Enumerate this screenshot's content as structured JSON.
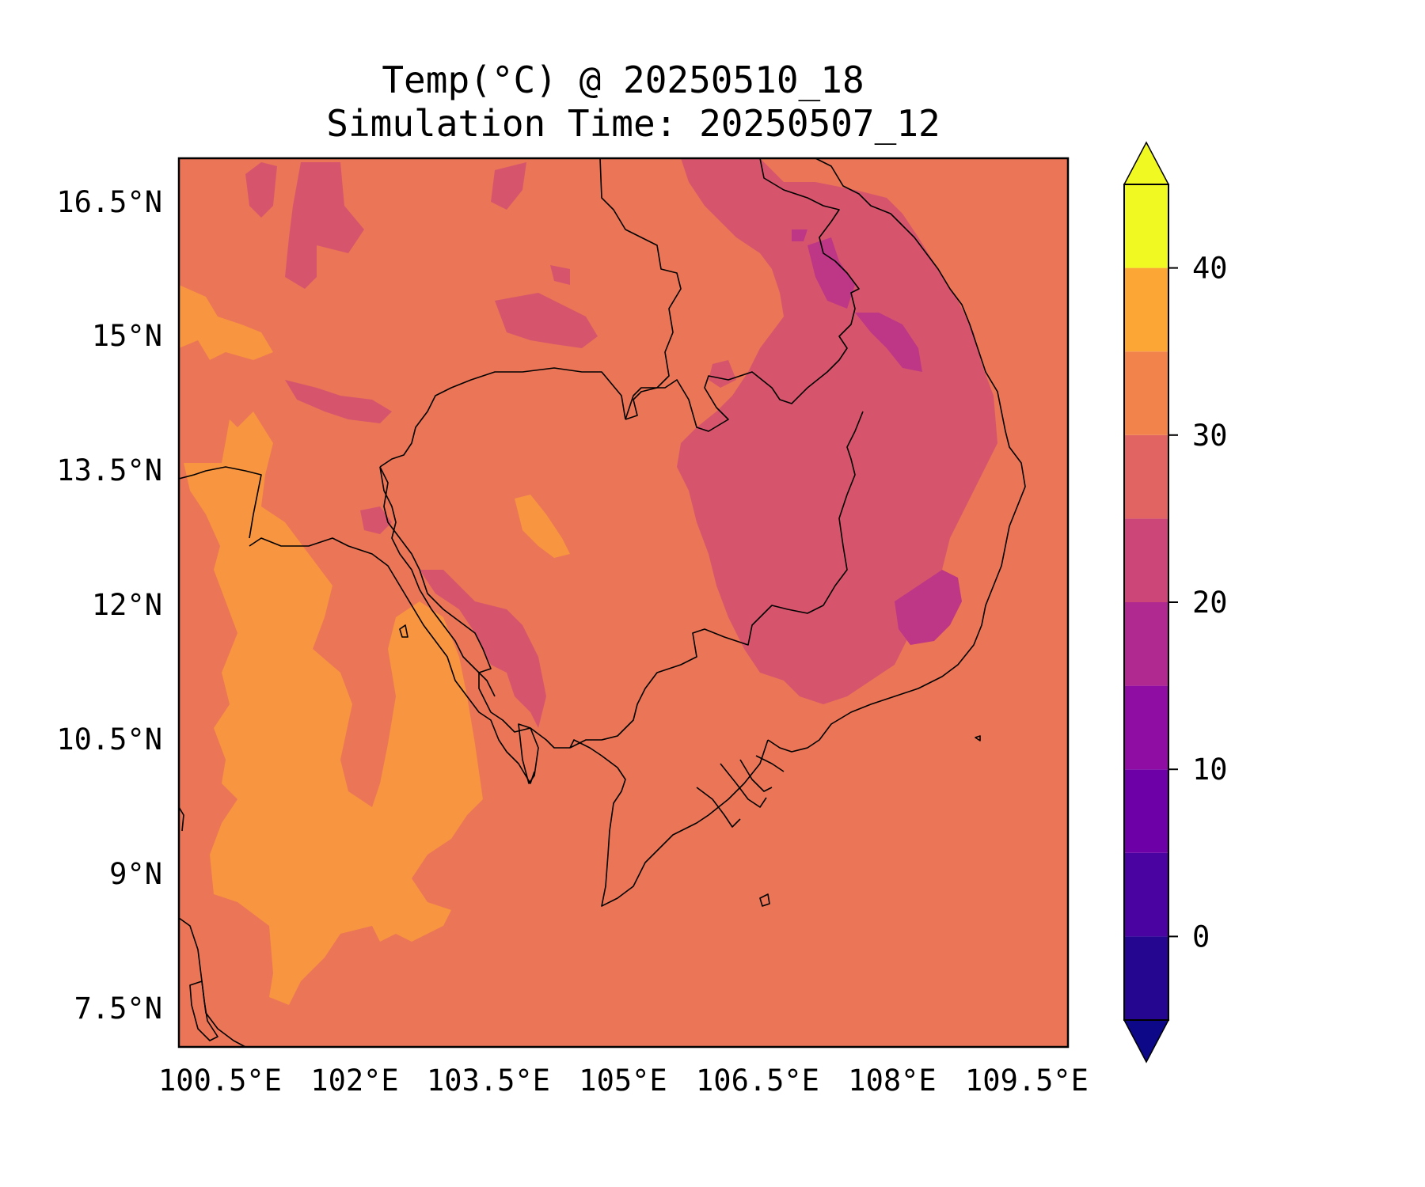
{
  "title": "Temp(°C) @ 20250510_18",
  "subtitle": "Simulation Time: 20250507_12",
  "map": {
    "x_ticks": [
      "100.5°E",
      "102°E",
      "103.5°E",
      "105°E",
      "106.5°E",
      "108°E",
      "109.5°E"
    ],
    "y_ticks": [
      "16.5°N",
      "15°N",
      "13.5°N",
      "12°N",
      "10.5°N",
      "9°N",
      "7.5°N"
    ],
    "colors": {
      "background": "#eb7557",
      "warm": "#f89540",
      "cool": "#d6556d",
      "cooler": "#bd3786",
      "border": "#000000"
    },
    "legend_placement": "right"
  },
  "colorbar": {
    "ticks": [
      "0",
      "10",
      "20",
      "30",
      "40"
    ],
    "range": [
      -5,
      45
    ],
    "step": 5,
    "extend": "both",
    "colors": [
      "#240691",
      "#4a02a0",
      "#6e00a8",
      "#900da4",
      "#b02991",
      "#cc4778",
      "#e16462",
      "#f2844b",
      "#fca636",
      "#f0f921"
    ]
  }
}
